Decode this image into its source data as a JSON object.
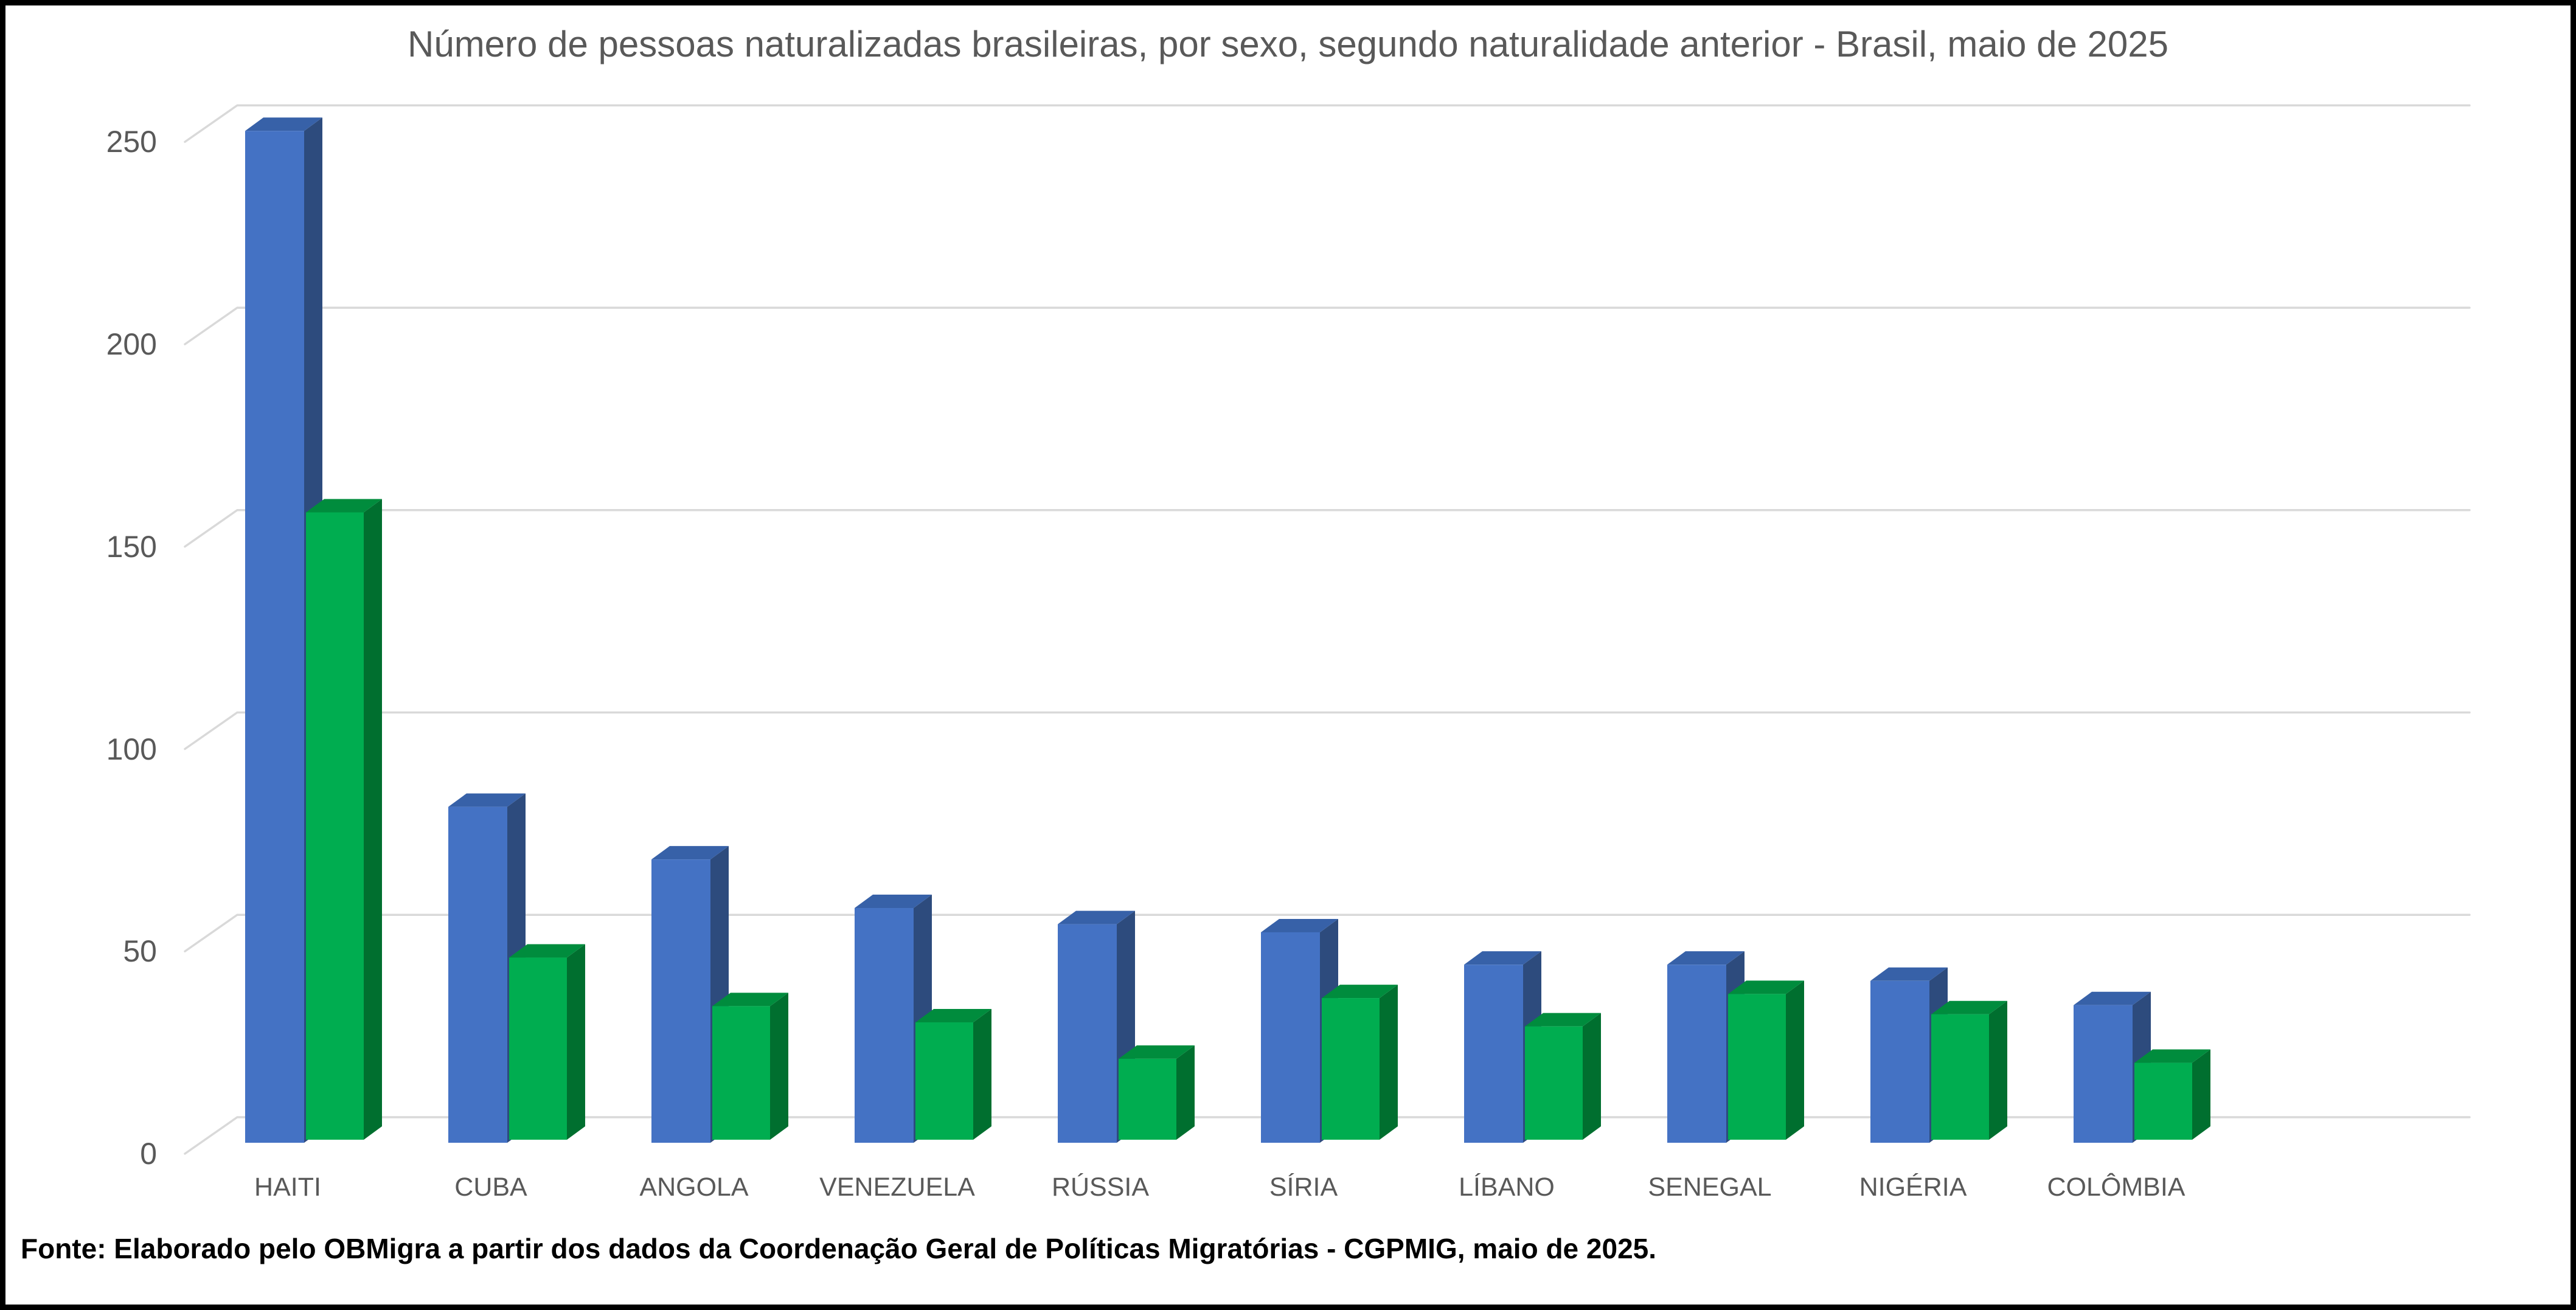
{
  "header": {
    "title": "Número de pessoas naturalizadas brasileiras, por sexo, segundo naturalidade anterior - Brasil, maio de 2025"
  },
  "footer": {
    "source": "Fonte: Elaborado pelo OBMigra a partir dos dados da Coordenação Geral de Políticas Migratórias - CGPMIG, maio de 2025."
  },
  "chart_data": {
    "type": "bar",
    "style": "3d-column",
    "title": "Número de pessoas naturalizadas brasileiras, por sexo, segundo naturalidade anterior - Brasil, maio de 2025",
    "categories": [
      "HAITI",
      "CUBA",
      "ANGOLA",
      "VENEZUELA",
      "RÚSSIA",
      "SÍRIA",
      "LÍBANO",
      "SENEGAL",
      "NIGÉRIA",
      "COLÔMBIA"
    ],
    "series": [
      {
        "name": "blue-series",
        "color": "#4472C4",
        "values": [
          250,
          83,
          70,
          58,
          54,
          52,
          44,
          44,
          40,
          34
        ]
      },
      {
        "name": "green-series",
        "color": "#00AD50",
        "values": [
          155,
          45,
          33,
          29,
          20,
          35,
          28,
          36,
          31,
          19
        ]
      }
    ],
    "xlabel": "",
    "ylabel": "",
    "ylim": [
      0,
      250
    ],
    "y_ticks": [
      0,
      50,
      100,
      150,
      200,
      250
    ],
    "grid": true,
    "legend_position": "none"
  },
  "colors": {
    "blue_front": "#4472C4",
    "blue_top": "#3761A8",
    "blue_side": "#2D4B7D",
    "green_front": "#00AD50",
    "green_top": "#008C3D",
    "green_side": "#006F2F",
    "gridline": "#D9D9D9",
    "axis_text": "#595959",
    "footer_text": "#000000",
    "background": "#FFFFFF",
    "frame_border": "#000000"
  }
}
